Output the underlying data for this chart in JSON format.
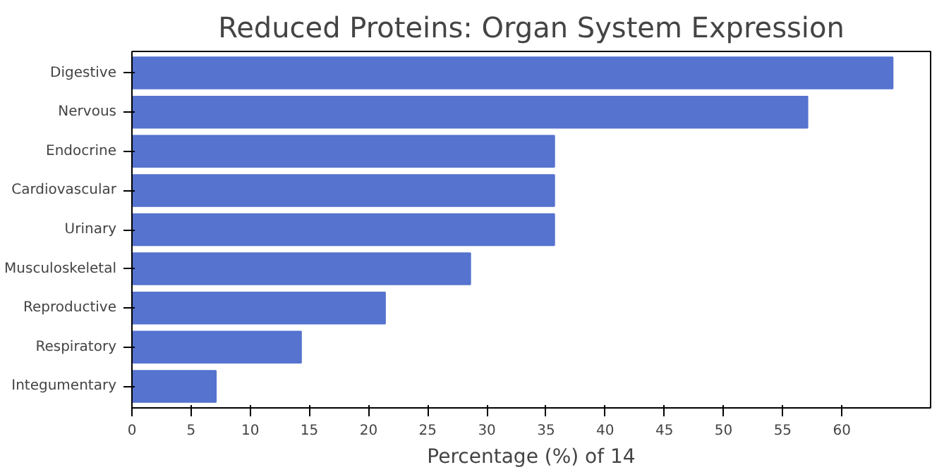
{
  "chart_data": {
    "type": "bar",
    "orientation": "horizontal",
    "title": "Reduced Proteins: Organ System Expression",
    "xlabel": "Percentage (%) of 14",
    "categories": [
      "Digestive",
      "Nervous",
      "Endocrine",
      "Cardiovascular",
      "Urinary",
      "Musculoskeletal",
      "Reproductive",
      "Respiratory",
      "Integumentary"
    ],
    "values": [
      64.3,
      57.1,
      35.7,
      35.7,
      35.7,
      28.6,
      21.4,
      14.3,
      7.1
    ],
    "color": "#5573cf",
    "xlim": [
      0,
      67.5
    ],
    "xticks": [
      0,
      5,
      10,
      15,
      20,
      25,
      30,
      35,
      40,
      45,
      50,
      55,
      60
    ],
    "grid": false
  }
}
